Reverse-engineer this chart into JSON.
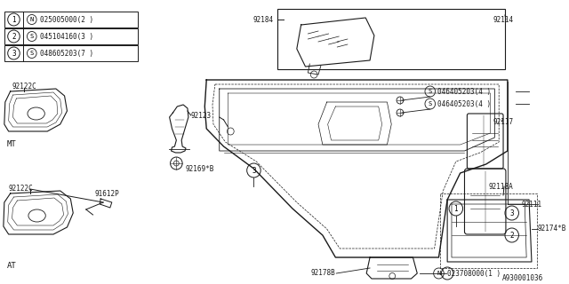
{
  "bg_color": "#ffffff",
  "line_color": "#1a1a1a",
  "fig_width": 6.4,
  "fig_height": 3.2,
  "diagram_code": "A930001036",
  "legend": [
    {
      "num": "1",
      "type": "N",
      "code": "025005000",
      "qty": "2"
    },
    {
      "num": "2",
      "type": "S",
      "code": "045104160",
      "qty": "3"
    },
    {
      "num": "3",
      "type": "S",
      "code": "048605203",
      "qty": "7"
    }
  ]
}
